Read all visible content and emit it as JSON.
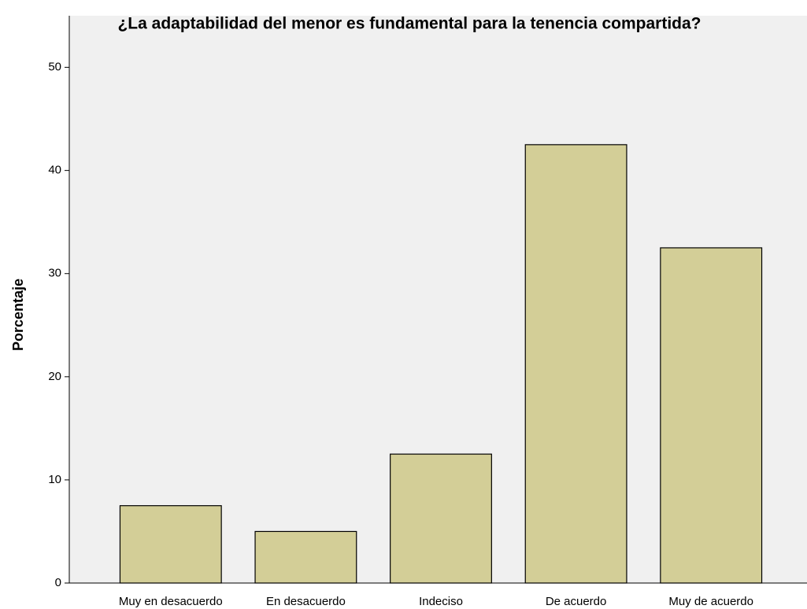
{
  "chart_data": {
    "type": "bar",
    "title": "¿La adaptabilidad del menor es fundamental para la tenencia compartida?",
    "y_label": "Porcentaje",
    "categories": [
      "Muy en desacuerdo",
      "En desacuerdo",
      "Indeciso",
      "De acuerdo",
      "Muy de acuerdo"
    ],
    "values": [
      7.5,
      5,
      12.5,
      42.5,
      32.5
    ],
    "color": "#d3ce97",
    "ylim": [
      0,
      55
    ],
    "yticks": [
      0,
      10,
      20,
      30,
      40,
      50
    ],
    "grid": false
  }
}
